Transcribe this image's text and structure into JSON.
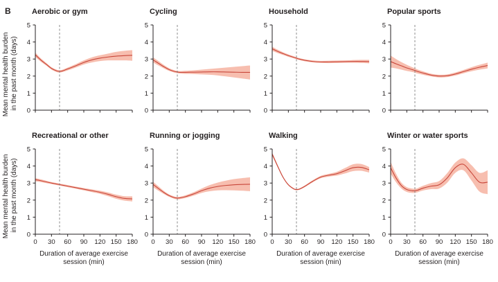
{
  "figure_label": "B",
  "shared_ylabel": "Mean mental health burden in the past month (days)",
  "shared_ylabel_lines": [
    "Mean mental health burden",
    "in the past month (days)"
  ],
  "shared_xlabel": "Duration of average exercise session (min)",
  "shared_xlabel_lines": [
    "Duration of average exercise",
    "session (min)"
  ],
  "colors": {
    "line": "#c8463a",
    "band": "#f6b7a6",
    "reference": "#7f7f7f",
    "axis": "#231f20"
  },
  "chart_data": [
    {
      "type": "line",
      "title": "Aerobic or gym",
      "xlim": [
        0,
        180
      ],
      "ylim": [
        0,
        5
      ],
      "x_ticks": [
        0,
        30,
        60,
        90,
        120,
        150,
        180
      ],
      "y_ticks": [
        0,
        1,
        2,
        3,
        4,
        5
      ],
      "reference_x": 45,
      "show_x_tick_labels": false,
      "series": [
        {
          "x": [
            0,
            10,
            20,
            30,
            40,
            45,
            50,
            60,
            75,
            90,
            105,
            120,
            135,
            150,
            165,
            180
          ],
          "y": [
            3.25,
            2.95,
            2.7,
            2.45,
            2.3,
            2.28,
            2.3,
            2.42,
            2.6,
            2.8,
            2.95,
            3.05,
            3.12,
            3.17,
            3.2,
            3.22
          ],
          "lower": [
            3.12,
            2.85,
            2.62,
            2.38,
            2.23,
            2.21,
            2.23,
            2.33,
            2.5,
            2.68,
            2.8,
            2.88,
            2.92,
            2.92,
            2.92,
            2.9
          ],
          "upper": [
            3.38,
            3.05,
            2.78,
            2.52,
            2.37,
            2.35,
            2.37,
            2.5,
            2.7,
            2.92,
            3.1,
            3.22,
            3.32,
            3.42,
            3.48,
            3.52
          ]
        }
      ]
    },
    {
      "type": "line",
      "title": "Cycling",
      "xlim": [
        0,
        180
      ],
      "ylim": [
        0,
        5
      ],
      "x_ticks": [
        0,
        30,
        60,
        90,
        120,
        150,
        180
      ],
      "y_ticks": [
        0,
        1,
        2,
        3,
        4,
        5
      ],
      "reference_x": 45,
      "show_x_tick_labels": false,
      "series": [
        {
          "x": [
            0,
            10,
            20,
            30,
            40,
            45,
            50,
            60,
            75,
            90,
            105,
            120,
            135,
            150,
            165,
            180
          ],
          "y": [
            2.95,
            2.75,
            2.55,
            2.38,
            2.27,
            2.24,
            2.22,
            2.22,
            2.23,
            2.24,
            2.25,
            2.25,
            2.24,
            2.23,
            2.22,
            2.22
          ],
          "lower": [
            2.8,
            2.62,
            2.45,
            2.3,
            2.2,
            2.17,
            2.15,
            2.13,
            2.12,
            2.1,
            2.08,
            2.04,
            1.98,
            1.92,
            1.86,
            1.8
          ],
          "upper": [
            3.1,
            2.88,
            2.65,
            2.46,
            2.34,
            2.31,
            2.29,
            2.31,
            2.34,
            2.38,
            2.42,
            2.46,
            2.5,
            2.54,
            2.58,
            2.62
          ]
        }
      ]
    },
    {
      "type": "line",
      "title": "Household",
      "xlim": [
        0,
        180
      ],
      "ylim": [
        0,
        5
      ],
      "x_ticks": [
        0,
        30,
        60,
        90,
        120,
        150,
        180
      ],
      "y_ticks": [
        0,
        1,
        2,
        3,
        4,
        5
      ],
      "reference_x": 45,
      "show_x_tick_labels": false,
      "series": [
        {
          "x": [
            0,
            10,
            20,
            30,
            40,
            45,
            50,
            60,
            75,
            90,
            105,
            120,
            135,
            150,
            165,
            180
          ],
          "y": [
            3.6,
            3.45,
            3.32,
            3.2,
            3.1,
            3.05,
            3.0,
            2.93,
            2.86,
            2.83,
            2.83,
            2.84,
            2.85,
            2.86,
            2.86,
            2.85
          ],
          "lower": [
            3.48,
            3.35,
            3.24,
            3.13,
            3.04,
            2.99,
            2.94,
            2.87,
            2.8,
            2.77,
            2.76,
            2.77,
            2.78,
            2.78,
            2.77,
            2.75
          ],
          "upper": [
            3.72,
            3.55,
            3.4,
            3.27,
            3.16,
            3.11,
            3.06,
            2.99,
            2.92,
            2.89,
            2.9,
            2.91,
            2.92,
            2.94,
            2.95,
            2.95
          ]
        }
      ]
    },
    {
      "type": "line",
      "title": "Popular sports",
      "xlim": [
        0,
        180
      ],
      "ylim": [
        0,
        5
      ],
      "x_ticks": [
        0,
        30,
        60,
        90,
        120,
        150,
        180
      ],
      "y_ticks": [
        0,
        1,
        2,
        3,
        4,
        5
      ],
      "reference_x": 45,
      "show_x_tick_labels": false,
      "series": [
        {
          "x": [
            0,
            10,
            20,
            30,
            40,
            45,
            50,
            60,
            75,
            90,
            105,
            120,
            135,
            150,
            165,
            180
          ],
          "y": [
            2.85,
            2.72,
            2.6,
            2.48,
            2.38,
            2.33,
            2.27,
            2.18,
            2.06,
            2.0,
            2.02,
            2.12,
            2.26,
            2.4,
            2.52,
            2.62
          ],
          "lower": [
            2.5,
            2.45,
            2.38,
            2.3,
            2.24,
            2.2,
            2.15,
            2.08,
            1.98,
            1.92,
            1.94,
            2.03,
            2.16,
            2.28,
            2.38,
            2.45
          ],
          "upper": [
            3.2,
            3.0,
            2.82,
            2.66,
            2.52,
            2.46,
            2.39,
            2.28,
            2.14,
            2.08,
            2.1,
            2.21,
            2.36,
            2.52,
            2.66,
            2.79
          ]
        }
      ]
    },
    {
      "type": "line",
      "title": "Recreational or other",
      "xlim": [
        0,
        180
      ],
      "ylim": [
        0,
        5
      ],
      "x_ticks": [
        0,
        30,
        60,
        90,
        120,
        150,
        180
      ],
      "y_ticks": [
        0,
        1,
        2,
        3,
        4,
        5
      ],
      "reference_x": 45,
      "show_x_tick_labels": true,
      "series": [
        {
          "x": [
            0,
            10,
            20,
            30,
            40,
            45,
            50,
            60,
            75,
            90,
            105,
            120,
            135,
            150,
            165,
            180
          ],
          "y": [
            3.2,
            3.14,
            3.07,
            3.0,
            2.94,
            2.91,
            2.88,
            2.82,
            2.73,
            2.64,
            2.55,
            2.46,
            2.34,
            2.2,
            2.1,
            2.07
          ],
          "lower": [
            3.1,
            3.06,
            3.0,
            2.94,
            2.88,
            2.85,
            2.82,
            2.76,
            2.67,
            2.57,
            2.47,
            2.37,
            2.23,
            2.08,
            1.97,
            1.92
          ],
          "upper": [
            3.3,
            3.22,
            3.14,
            3.06,
            3.0,
            2.97,
            2.94,
            2.88,
            2.79,
            2.71,
            2.63,
            2.55,
            2.45,
            2.32,
            2.23,
            2.22
          ]
        }
      ]
    },
    {
      "type": "line",
      "title": "Running or jogging",
      "xlim": [
        0,
        180
      ],
      "ylim": [
        0,
        5
      ],
      "x_ticks": [
        0,
        30,
        60,
        90,
        120,
        150,
        180
      ],
      "y_ticks": [
        0,
        1,
        2,
        3,
        4,
        5
      ],
      "reference_x": 45,
      "show_x_tick_labels": true,
      "series": [
        {
          "x": [
            0,
            10,
            20,
            30,
            40,
            45,
            50,
            60,
            75,
            90,
            105,
            120,
            135,
            150,
            165,
            180
          ],
          "y": [
            2.92,
            2.68,
            2.45,
            2.26,
            2.14,
            2.12,
            2.13,
            2.2,
            2.36,
            2.55,
            2.7,
            2.8,
            2.86,
            2.9,
            2.92,
            2.93
          ],
          "lower": [
            2.76,
            2.55,
            2.36,
            2.19,
            2.07,
            2.05,
            2.06,
            2.12,
            2.26,
            2.42,
            2.52,
            2.57,
            2.58,
            2.57,
            2.55,
            2.52
          ],
          "upper": [
            3.08,
            2.81,
            2.54,
            2.33,
            2.21,
            2.19,
            2.2,
            2.28,
            2.46,
            2.68,
            2.88,
            3.03,
            3.14,
            3.23,
            3.29,
            3.34
          ]
        }
      ]
    },
    {
      "type": "line",
      "title": "Walking",
      "xlim": [
        0,
        180
      ],
      "ylim": [
        0,
        5
      ],
      "x_ticks": [
        0,
        30,
        60,
        90,
        120,
        150,
        180
      ],
      "y_ticks": [
        0,
        1,
        2,
        3,
        4,
        5
      ],
      "reference_x": 45,
      "show_x_tick_labels": true,
      "series": [
        {
          "x": [
            0,
            10,
            20,
            30,
            40,
            45,
            50,
            60,
            75,
            90,
            105,
            120,
            135,
            150,
            165,
            180
          ],
          "y": [
            4.7,
            4.0,
            3.35,
            2.9,
            2.66,
            2.62,
            2.64,
            2.8,
            3.1,
            3.35,
            3.46,
            3.55,
            3.72,
            3.9,
            3.92,
            3.78
          ],
          "lower": [
            4.6,
            3.93,
            3.3,
            2.86,
            2.62,
            2.58,
            2.6,
            2.75,
            3.04,
            3.28,
            3.38,
            3.44,
            3.56,
            3.7,
            3.72,
            3.62
          ],
          "upper": [
            4.8,
            4.07,
            3.4,
            2.94,
            2.7,
            2.66,
            2.68,
            2.85,
            3.16,
            3.42,
            3.54,
            3.66,
            3.88,
            4.1,
            4.12,
            3.94
          ]
        }
      ]
    },
    {
      "type": "line",
      "title": "Winter or water sports",
      "xlim": [
        0,
        180
      ],
      "ylim": [
        0,
        5
      ],
      "x_ticks": [
        0,
        30,
        60,
        90,
        120,
        150,
        180
      ],
      "y_ticks": [
        0,
        1,
        2,
        3,
        4,
        5
      ],
      "reference_x": 45,
      "show_x_tick_labels": true,
      "series": [
        {
          "x": [
            0,
            10,
            20,
            30,
            40,
            45,
            50,
            60,
            75,
            90,
            105,
            120,
            135,
            150,
            165,
            180
          ],
          "y": [
            3.9,
            3.3,
            2.85,
            2.62,
            2.55,
            2.55,
            2.58,
            2.7,
            2.82,
            2.9,
            3.3,
            3.9,
            4.1,
            3.6,
            3.05,
            3.05
          ],
          "lower": [
            3.55,
            3.05,
            2.68,
            2.48,
            2.42,
            2.43,
            2.46,
            2.56,
            2.64,
            2.68,
            3.02,
            3.6,
            3.75,
            3.15,
            2.5,
            2.35
          ],
          "upper": [
            4.25,
            3.55,
            3.02,
            2.76,
            2.68,
            2.67,
            2.7,
            2.84,
            3.0,
            3.12,
            3.58,
            4.2,
            4.45,
            4.05,
            3.6,
            3.75
          ]
        }
      ]
    }
  ]
}
